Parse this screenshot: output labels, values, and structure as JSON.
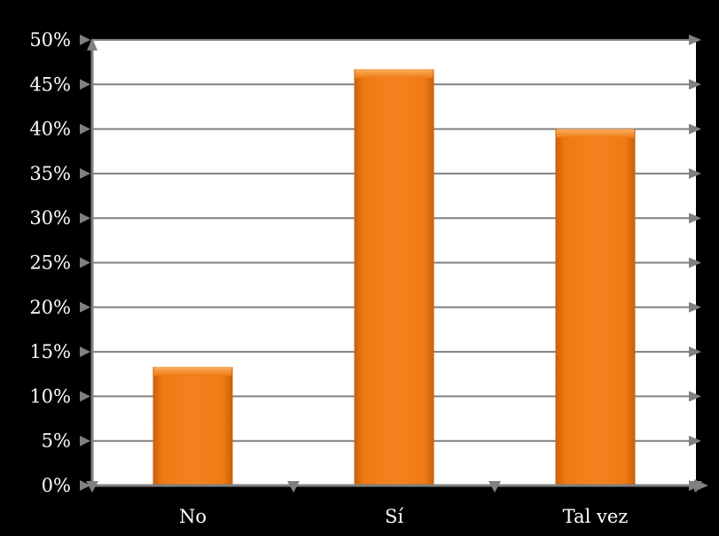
{
  "chart_data": {
    "type": "bar",
    "categories": [
      "No",
      "Sí",
      "Tal vez"
    ],
    "values": [
      13.3,
      46.7,
      40.0
    ],
    "value_unit": "%",
    "ylim": [
      0,
      50
    ],
    "ytick_step": 5,
    "yticks": [
      "0%",
      "5%",
      "10%",
      "15%",
      "20%",
      "25%",
      "30%",
      "35%",
      "40%",
      "45%",
      "50%"
    ],
    "title": "",
    "xlabel": "",
    "ylabel": "",
    "grid": true,
    "legend": "none"
  },
  "colors": {
    "background": "#000000",
    "plot_area": "#ffffff",
    "gridline": "#808080",
    "bar_fill": "#f07a12",
    "bar_fill_light": "#f9a449",
    "bar_fill_dark": "#b8560a",
    "text": "#ffffff"
  }
}
